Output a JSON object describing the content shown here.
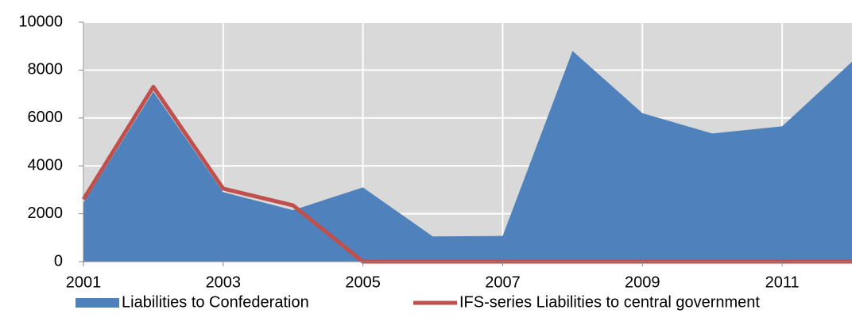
{
  "chart_data": {
    "type": "area",
    "x": [
      2001,
      2002,
      2003,
      2004,
      2005,
      2006,
      2007,
      2008,
      2009,
      2010,
      2011,
      2012
    ],
    "series": [
      {
        "name": "Liabilities to Confederation",
        "type": "area",
        "color": "#4f81bd",
        "values": [
          2450,
          7100,
          2900,
          2150,
          3100,
          1050,
          1070,
          8800,
          6200,
          5350,
          5650,
          8350
        ]
      },
      {
        "name": "IFS-series Liabilities to central government",
        "type": "line",
        "color": "#c0504d",
        "values": [
          2600,
          7300,
          3050,
          2350,
          0,
          0,
          0,
          0,
          0,
          0,
          0,
          0
        ]
      }
    ],
    "xlim": [
      2001,
      2012
    ],
    "xticks": [
      2001,
      2003,
      2005,
      2007,
      2009,
      2011
    ],
    "ylim": [
      0,
      10000
    ],
    "yticks": [
      0,
      2000,
      4000,
      6000,
      8000,
      10000
    ],
    "grid": true,
    "legend": "bottom"
  }
}
